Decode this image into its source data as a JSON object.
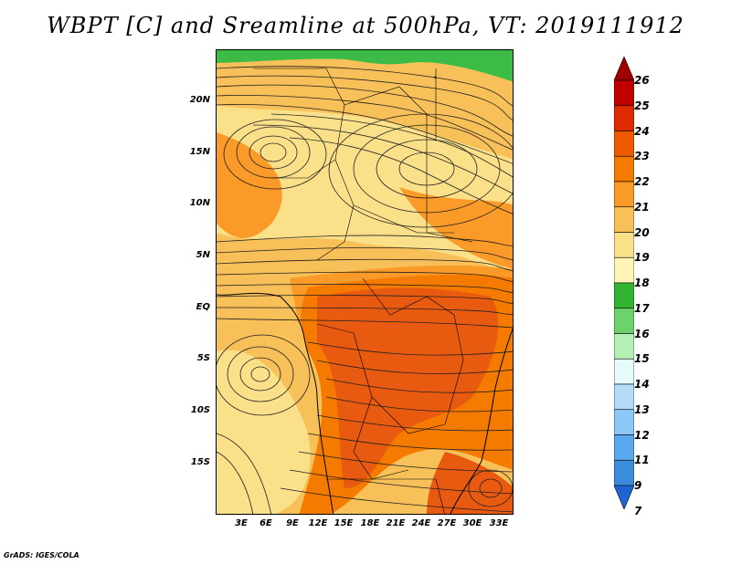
{
  "title": "WBPT [C] and Sreamline at 500hPa, VT: 2019111912",
  "credit": "GrADS: IGES/COLA",
  "latitude_labels": [
    "20N",
    "15N",
    "10N",
    "5N",
    "EQ",
    "5S",
    "10S",
    "15S"
  ],
  "longitude_labels": [
    "3E",
    "6E",
    "9E",
    "12E",
    "15E",
    "18E",
    "21E",
    "24E",
    "27E",
    "30E",
    "33E"
  ],
  "colorbar": {
    "levels": [
      "26",
      "25",
      "24",
      "23",
      "22",
      "21",
      "20",
      "19",
      "18",
      "17",
      "16",
      "15",
      "14",
      "13",
      "12",
      "11",
      "9",
      "7"
    ],
    "colors": [
      "#a00000",
      "#c00000",
      "#dd2a00",
      "#ee5a00",
      "#f57a00",
      "#fa9a28",
      "#f8c058",
      "#fbe08a",
      "#fff5b8",
      "#32b432",
      "#6cd26c",
      "#b4f0b4",
      "#e6fafa",
      "#b4dcf8",
      "#8cc8f5",
      "#5aa8ee",
      "#3c8cdc",
      "#1e64d2"
    ]
  },
  "map_colors": {
    "wbpt_17": "#3cbc46",
    "wbpt_19": "#fbe08a",
    "wbpt_20": "#f8c058",
    "wbpt_21": "#fa9a28",
    "wbpt_22": "#f57a00",
    "wbpt_23": "#e85a10"
  }
}
